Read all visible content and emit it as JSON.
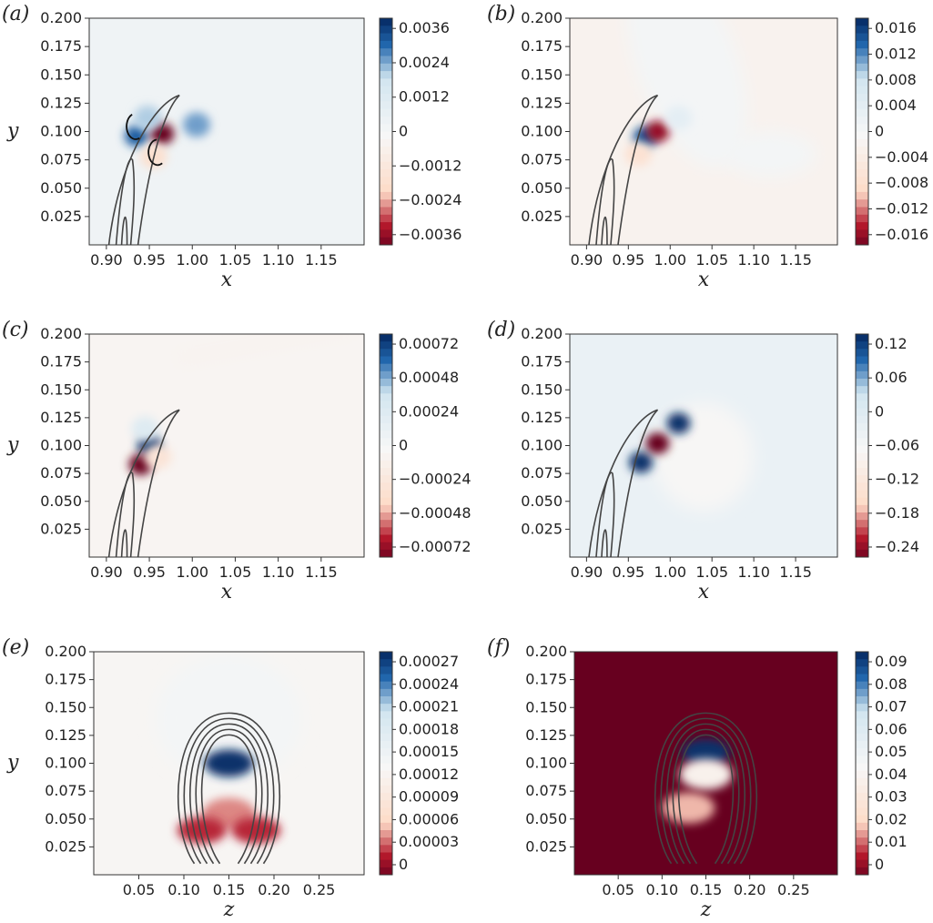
{
  "colors": {
    "blue_dark": "#08306b",
    "blue": "#2166ac",
    "blue_light": "#d1e5f0",
    "white": "#f7f7f7",
    "red_light": "#fddbc7",
    "red": "#b2182b",
    "red_dark": "#67001f",
    "contour_line": "#444444"
  },
  "chart_data": [
    {
      "panel": "(a)",
      "type": "heatmap",
      "xlabel": "x",
      "ylabel": "y",
      "xlim": [
        0.88,
        1.2
      ],
      "ylim": [
        0.0,
        0.2
      ],
      "xticks": [
        "0.90",
        "0.95",
        "1.00",
        "1.05",
        "1.10",
        "1.15"
      ],
      "yticks": [
        "0.200",
        "0.175",
        "0.150",
        "0.125",
        "0.100",
        "0.075",
        "0.050",
        "0.025"
      ],
      "colorbar_ticks": [
        "0.0036",
        "0.0024",
        "0.0012",
        "0",
        "−0.0012",
        "−0.0024",
        "−0.0036"
      ],
      "background_level": 0.0004,
      "features": [
        {
          "x": 0.935,
          "y": 0.096,
          "value": 0.003
        },
        {
          "x": 0.965,
          "y": 0.098,
          "value": -0.0036
        },
        {
          "x": 0.948,
          "y": 0.112,
          "value": 0.002
        },
        {
          "x": 1.005,
          "y": 0.106,
          "value": 0.0024
        },
        {
          "x": 0.955,
          "y": 0.078,
          "value": -0.0015
        }
      ],
      "annotation": "counter-rotating vortex arrows"
    },
    {
      "panel": "(b)",
      "type": "heatmap",
      "xlabel": "x",
      "ylabel": "",
      "xlim": [
        0.88,
        1.2
      ],
      "ylim": [
        0.0,
        0.2
      ],
      "xticks": [
        "0.90",
        "0.95",
        "1.00",
        "1.05",
        "1.10",
        "1.15"
      ],
      "yticks": [
        "0.200",
        "0.175",
        "0.150",
        "0.125",
        "0.100",
        "0.075",
        "0.050",
        "0.025"
      ],
      "colorbar_ticks": [
        "0.016",
        "0.012",
        "0.008",
        "0.004",
        "0",
        "−0.004",
        "−0.008",
        "−0.012",
        "−0.016"
      ],
      "background_level": -0.0015,
      "features": [
        {
          "x": 0.97,
          "y": 0.095,
          "value": 0.014
        },
        {
          "x": 0.985,
          "y": 0.1,
          "value": -0.014
        },
        {
          "x": 1.01,
          "y": 0.112,
          "value": 0.004
        },
        {
          "x": 0.962,
          "y": 0.08,
          "value": -0.006
        }
      ]
    },
    {
      "panel": "(c)",
      "type": "heatmap",
      "xlabel": "x",
      "ylabel": "y",
      "xlim": [
        0.88,
        1.2
      ],
      "ylim": [
        0.0,
        0.2
      ],
      "xticks": [
        "0.90",
        "0.95",
        "1.00",
        "1.05",
        "1.10",
        "1.15"
      ],
      "yticks": [
        "0.200",
        "0.175",
        "0.150",
        "0.125",
        "0.100",
        "0.075",
        "0.050",
        "0.025"
      ],
      "colorbar_ticks": [
        "0.00072",
        "0.00048",
        "0.00024",
        "0",
        "−0.00024",
        "−0.00048",
        "−0.00072"
      ],
      "background_level": -4e-05,
      "features": [
        {
          "x": 0.95,
          "y": 0.1,
          "value": 0.00072
        },
        {
          "x": 0.94,
          "y": 0.083,
          "value": -0.00072
        },
        {
          "x": 0.945,
          "y": 0.115,
          "value": 0.00024
        },
        {
          "x": 0.96,
          "y": 0.09,
          "value": -0.00024
        }
      ]
    },
    {
      "panel": "(d)",
      "type": "heatmap",
      "xlabel": "x",
      "ylabel": "",
      "xlim": [
        0.88,
        1.2
      ],
      "ylim": [
        0.0,
        0.2
      ],
      "xticks": [
        "0.90",
        "0.95",
        "1.00",
        "1.05",
        "1.10",
        "1.15"
      ],
      "yticks": [
        "0.200",
        "0.175",
        "0.150",
        "0.125",
        "0.100",
        "0.075",
        "0.050",
        "0.025"
      ],
      "colorbar_ticks": [
        "0.12",
        "0.06",
        "0",
        "−0.06",
        "−0.12",
        "−0.18",
        "−0.24"
      ],
      "background_level": 0.02,
      "features": [
        {
          "x": 0.965,
          "y": 0.085,
          "value": 0.12
        },
        {
          "x": 0.985,
          "y": 0.102,
          "value": -0.24
        },
        {
          "x": 1.01,
          "y": 0.12,
          "value": 0.12
        }
      ]
    },
    {
      "panel": "(e)",
      "type": "heatmap",
      "xlabel": "z",
      "ylabel": "y",
      "xlim": [
        0.0,
        0.3
      ],
      "ylim": [
        0.0,
        0.2
      ],
      "xticks": [
        "0.05",
        "0.10",
        "0.15",
        "0.20",
        "0.25"
      ],
      "yticks": [
        "0.200",
        "0.175",
        "0.150",
        "0.125",
        "0.100",
        "0.075",
        "0.050",
        "0.025"
      ],
      "colorbar_ticks": [
        "0.00027",
        "0.00024",
        "0.00021",
        "0.00018",
        "0.00015",
        "0.00012",
        "0.00009",
        "0.00006",
        "0.00003",
        "0"
      ],
      "background_level": 0.00013,
      "features": [
        {
          "x": 0.15,
          "y": 0.1,
          "value": 0.00027
        },
        {
          "x": 0.15,
          "y": 0.055,
          "value": 5e-05
        },
        {
          "x": 0.12,
          "y": 0.04,
          "value": 3e-05
        },
        {
          "x": 0.18,
          "y": 0.04,
          "value": 3e-05
        }
      ]
    },
    {
      "panel": "(f)",
      "type": "heatmap",
      "xlabel": "z",
      "ylabel": "",
      "xlim": [
        0.0,
        0.3
      ],
      "ylim": [
        0.0,
        0.2
      ],
      "xticks": [
        "0.05",
        "0.10",
        "0.15",
        "0.20",
        "0.25"
      ],
      "yticks": [
        "0.200",
        "0.175",
        "0.150",
        "0.125",
        "0.100",
        "0.075",
        "0.050",
        "0.025"
      ],
      "colorbar_ticks": [
        "0.09",
        "0.08",
        "0.07",
        "0.06",
        "0.05",
        "0.04",
        "0.03",
        "0.02",
        "0.01",
        "0"
      ],
      "background_level": 0.0,
      "features": [
        {
          "x": 0.15,
          "y": 0.11,
          "value": 0.09
        },
        {
          "x": 0.15,
          "y": 0.09,
          "value": 0.04
        },
        {
          "x": 0.13,
          "y": 0.06,
          "value": 0.02
        }
      ]
    }
  ]
}
